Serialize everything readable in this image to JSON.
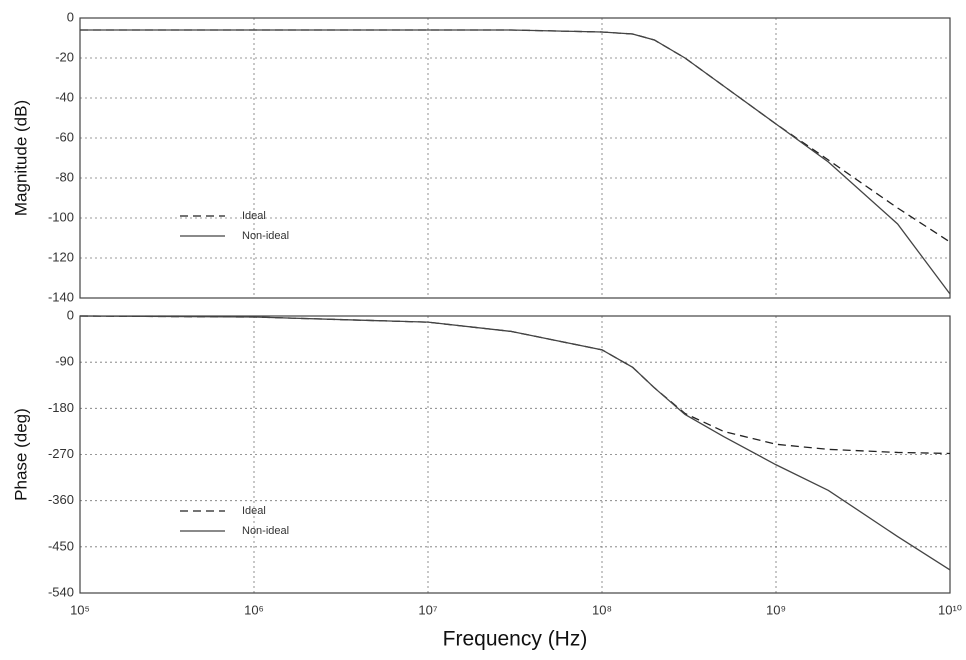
{
  "chart_data": [
    {
      "type": "line",
      "ylabel": "Magnitude (dB)",
      "log_x": true,
      "grid": true,
      "legend": "lower left",
      "show_xtick_labels": false,
      "x": [
        100000,
        1000000,
        10000000,
        30000000,
        100000000,
        150000000,
        200000000,
        300000000,
        500000000,
        1000000000,
        2000000000,
        5000000000,
        10000000000
      ],
      "series": [
        {
          "name": "Ideal",
          "color": "#222222",
          "linestyle": "dashed",
          "values": [
            -6,
            -6,
            -6,
            -6,
            -7,
            -8,
            -11,
            -20,
            -34,
            -53,
            -71,
            -95,
            -112
          ]
        },
        {
          "name": "Non-ideal",
          "color": "#444444",
          "linestyle": "solid",
          "values": [
            -6,
            -6,
            -6,
            -6,
            -7,
            -8,
            -11,
            -20,
            -34,
            -53,
            -72,
            -103,
            -138
          ]
        }
      ],
      "xlim": [
        100000,
        10000000000
      ],
      "xticks": [
        100000,
        1000000,
        10000000,
        100000000,
        1000000000,
        10000000000
      ],
      "ylim": [
        -140,
        0
      ],
      "yticks": [
        0,
        -20,
        -40,
        -60,
        -80,
        -100,
        -120,
        -140
      ]
    },
    {
      "type": "line",
      "ylabel": "Phase (deg)",
      "xlabel": "Frequency (Hz)",
      "log_x": true,
      "grid": true,
      "legend": "lower left",
      "show_xtick_labels": true,
      "x": [
        100000,
        1000000,
        10000000,
        30000000,
        100000000,
        150000000,
        200000000,
        300000000,
        500000000,
        1000000000,
        2000000000,
        5000000000,
        10000000000
      ],
      "series": [
        {
          "name": "Ideal",
          "color": "#222222",
          "linestyle": "dashed",
          "values": [
            0,
            -2,
            -12,
            -30,
            -66,
            -100,
            -140,
            -190,
            -225,
            -250,
            -260,
            -266,
            -268
          ]
        },
        {
          "name": "Non-ideal",
          "color": "#444444",
          "linestyle": "solid",
          "values": [
            0,
            -2,
            -12,
            -30,
            -66,
            -100,
            -140,
            -192,
            -235,
            -290,
            -340,
            -430,
            -495
          ]
        }
      ],
      "xlim": [
        100000,
        10000000000
      ],
      "xticks": [
        {
          "value": 100000,
          "label": "10⁵"
        },
        {
          "value": 1000000,
          "label": "10⁶"
        },
        {
          "value": 10000000,
          "label": "10⁷"
        },
        {
          "value": 100000000,
          "label": "10⁸"
        },
        {
          "value": 1000000000,
          "label": "10⁹"
        },
        {
          "value": 10000000000,
          "label": "10¹⁰"
        }
      ],
      "ylim": [
        -540,
        0
      ],
      "yticks": [
        0,
        -90,
        -180,
        -270,
        -360,
        -450,
        -540
      ]
    }
  ]
}
